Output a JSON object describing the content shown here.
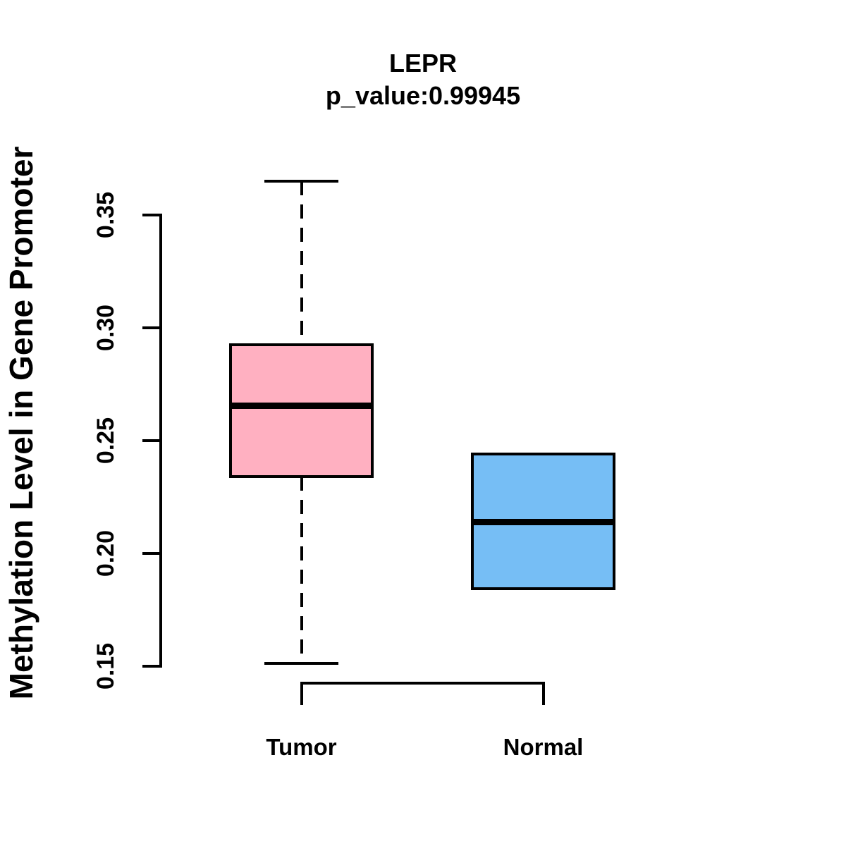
{
  "chart_data": {
    "type": "boxplot",
    "title": "LEPR",
    "subtitle": "p_value:0.99945",
    "p_value": "0.99945",
    "ylabel": "Methylation Level in Gene Promoter",
    "xlabel": "",
    "ylim": [
      0.15,
      0.365
    ],
    "yticks": [
      0.15,
      0.2,
      0.25,
      0.3,
      0.35
    ],
    "ytick_labels": [
      "0.15",
      "0.20",
      "0.25",
      "0.30",
      "0.35"
    ],
    "grid": false,
    "legend": "none",
    "categories": [
      "Tumor",
      "Normal"
    ],
    "groups": [
      {
        "label": "Tumor",
        "color": "#FFB0C1",
        "whisker_low": 0.1513,
        "q1": 0.2341,
        "median": 0.2656,
        "q3": 0.2925,
        "whisker_high": 0.365,
        "has_whiskers": true
      },
      {
        "label": "Normal",
        "color": "#76BEF5",
        "whisker_low": 0.1844,
        "q1": 0.1844,
        "median": 0.2139,
        "q3": 0.2441,
        "whisker_high": 0.2441,
        "has_whiskers": false
      }
    ]
  },
  "colors": {
    "background": "#FFFFFF",
    "stroke": "#000000",
    "tumor_fill": "#FFB0C1",
    "normal_fill": "#76BEF5"
  }
}
